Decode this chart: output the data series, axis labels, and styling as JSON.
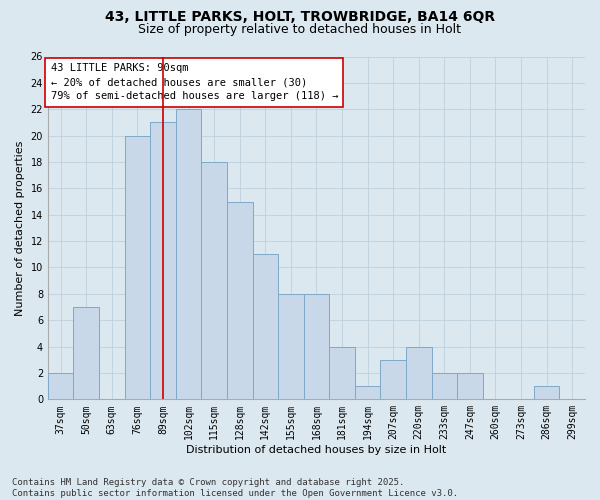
{
  "title1": "43, LITTLE PARKS, HOLT, TROWBRIDGE, BA14 6QR",
  "title2": "Size of property relative to detached houses in Holt",
  "xlabel": "Distribution of detached houses by size in Holt",
  "ylabel": "Number of detached properties",
  "categories": [
    "37sqm",
    "50sqm",
    "63sqm",
    "76sqm",
    "89sqm",
    "102sqm",
    "115sqm",
    "128sqm",
    "142sqm",
    "155sqm",
    "168sqm",
    "181sqm",
    "194sqm",
    "207sqm",
    "220sqm",
    "233sqm",
    "247sqm",
    "260sqm",
    "273sqm",
    "286sqm",
    "299sqm"
  ],
  "values": [
    2,
    7,
    0,
    20,
    21,
    22,
    18,
    15,
    11,
    8,
    8,
    4,
    1,
    3,
    4,
    2,
    2,
    0,
    0,
    1,
    0
  ],
  "bar_color": "#c8d8e8",
  "bar_edge_color": "#7fa8c8",
  "bar_width": 1.0,
  "reference_line_x": 4,
  "reference_line_color": "#cc0000",
  "annotation_text": "43 LITTLE PARKS: 90sqm\n← 20% of detached houses are smaller (30)\n79% of semi-detached houses are larger (118) →",
  "annotation_box_color": "#ffffff",
  "annotation_box_edge_color": "#cc0000",
  "ylim": [
    0,
    26
  ],
  "yticks": [
    0,
    2,
    4,
    6,
    8,
    10,
    12,
    14,
    16,
    18,
    20,
    22,
    24,
    26
  ],
  "grid_color": "#b8ccd8",
  "bg_color": "#dce8f0",
  "footnote": "Contains HM Land Registry data © Crown copyright and database right 2025.\nContains public sector information licensed under the Open Government Licence v3.0.",
  "title1_fontsize": 10,
  "title2_fontsize": 9,
  "annotation_fontsize": 7.5,
  "footnote_fontsize": 6.5,
  "axis_label_fontsize": 8,
  "tick_fontsize": 7
}
